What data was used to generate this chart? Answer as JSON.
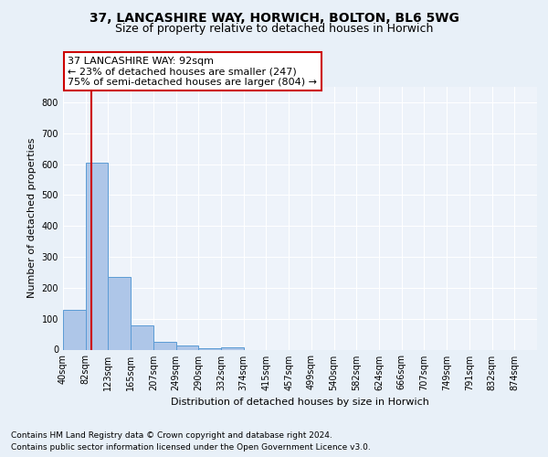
{
  "title1": "37, LANCASHIRE WAY, HORWICH, BOLTON, BL6 5WG",
  "title2": "Size of property relative to detached houses in Horwich",
  "xlabel": "Distribution of detached houses by size in Horwich",
  "ylabel": "Number of detached properties",
  "footnote1": "Contains HM Land Registry data © Crown copyright and database right 2024.",
  "footnote2": "Contains public sector information licensed under the Open Government Licence v3.0.",
  "bin_labels": [
    "40sqm",
    "82sqm",
    "123sqm",
    "165sqm",
    "207sqm",
    "249sqm",
    "290sqm",
    "332sqm",
    "374sqm",
    "415sqm",
    "457sqm",
    "499sqm",
    "540sqm",
    "582sqm",
    "624sqm",
    "666sqm",
    "707sqm",
    "749sqm",
    "791sqm",
    "832sqm",
    "874sqm"
  ],
  "bar_heights": [
    130,
    605,
    235,
    78,
    25,
    12,
    5,
    8,
    0,
    0,
    0,
    0,
    0,
    0,
    0,
    0,
    0,
    0,
    0,
    0,
    0
  ],
  "bar_color": "#aec6e8",
  "bar_edge_color": "#5b9bd5",
  "annotation_text1": "37 LANCASHIRE WAY: 92sqm",
  "annotation_text2": "← 23% of detached houses are smaller (247)",
  "annotation_text3": "75% of semi-detached houses are larger (804) →",
  "line_color": "#cc0000",
  "ylim": [
    0,
    850
  ],
  "yticks": [
    0,
    100,
    200,
    300,
    400,
    500,
    600,
    700,
    800
  ],
  "bg_color": "#e8f0f8",
  "axes_bg_color": "#eef3fa",
  "grid_color": "#ffffff",
  "title1_fontsize": 10,
  "title2_fontsize": 9,
  "tick_fontsize": 7,
  "label_fontsize": 8,
  "footnote_fontsize": 6.5,
  "annotation_fontsize": 8
}
